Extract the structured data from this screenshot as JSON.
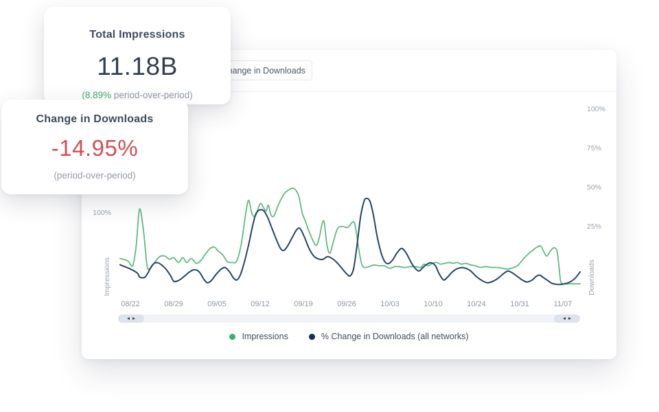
{
  "cards": {
    "impressions": {
      "title": "Total Impressions",
      "value": "11.18B",
      "delta_highlight": "(8.89%",
      "delta_muted": " period-over-period)"
    },
    "downloads": {
      "title": "Change in Downloads",
      "value": "-14.95%",
      "subtitle": "(period-over-period)"
    }
  },
  "toolbar": {
    "metric_dropdown_label": "% Change in Downloads"
  },
  "scrollbar": {
    "left_icon": "◂",
    "right_icon": "▸"
  },
  "chart_data": {
    "type": "line",
    "grid": false,
    "legend_position": "bottom-center",
    "x_axis": {
      "tick_labels": [
        "08/22",
        "08/29",
        "09/05",
        "09/12",
        "09/19",
        "09/26",
        "10/03",
        "10/10",
        "10/24",
        "10/31",
        "11/07"
      ]
    },
    "y_left": {
      "label": "Impressions",
      "unit": "%",
      "tick_labels": [
        "100%"
      ],
      "tick_values": [
        100
      ],
      "range": [
        0,
        235
      ]
    },
    "y_right": {
      "label": "Downloads",
      "unit": "%",
      "tick_labels": [
        "100%",
        "75%",
        "50%",
        "25%"
      ],
      "tick_values": [
        100,
        75,
        50,
        25
      ],
      "range": [
        -19,
        104
      ]
    },
    "series": [
      {
        "name": "Impressions",
        "axis": "left",
        "color": "#5fba81",
        "dot_color": "#2fb56d",
        "points": [
          [
            -0.24,
            45
          ],
          [
            -0.06,
            42
          ],
          [
            0.05,
            36
          ],
          [
            0.13,
            59
          ],
          [
            0.21,
            105
          ],
          [
            0.3,
            80
          ],
          [
            0.38,
            38
          ],
          [
            0.44,
            32
          ],
          [
            0.56,
            40
          ],
          [
            0.67,
            47
          ],
          [
            0.79,
            48
          ],
          [
            0.9,
            44
          ],
          [
            1.0,
            46
          ],
          [
            1.11,
            40
          ],
          [
            1.21,
            46
          ],
          [
            1.3,
            40
          ],
          [
            1.41,
            45
          ],
          [
            1.52,
            39
          ],
          [
            1.62,
            42
          ],
          [
            1.73,
            50
          ],
          [
            1.84,
            57
          ],
          [
            1.94,
            59
          ],
          [
            2.03,
            54
          ],
          [
            2.14,
            49
          ],
          [
            2.24,
            41
          ],
          [
            2.35,
            40
          ],
          [
            2.46,
            42
          ],
          [
            2.56,
            62
          ],
          [
            2.65,
            94
          ],
          [
            2.73,
            116
          ],
          [
            2.81,
            100
          ],
          [
            2.89,
            97
          ],
          [
            3.0,
            112
          ],
          [
            3.08,
            107
          ],
          [
            3.14,
            103
          ],
          [
            3.19,
            110
          ],
          [
            3.25,
            98
          ],
          [
            3.32,
            97
          ],
          [
            3.4,
            108
          ],
          [
            3.48,
            117
          ],
          [
            3.57,
            125
          ],
          [
            3.67,
            129
          ],
          [
            3.75,
            131
          ],
          [
            3.83,
            128
          ],
          [
            3.9,
            120
          ],
          [
            3.97,
            101
          ],
          [
            4.05,
            90
          ],
          [
            4.13,
            78
          ],
          [
            4.22,
            67
          ],
          [
            4.3,
            61
          ],
          [
            4.37,
            71
          ],
          [
            4.43,
            87
          ],
          [
            4.48,
            90
          ],
          [
            4.52,
            71
          ],
          [
            4.57,
            55
          ],
          [
            4.62,
            52
          ],
          [
            4.68,
            63
          ],
          [
            4.75,
            76
          ],
          [
            4.81,
            83
          ],
          [
            4.92,
            84
          ],
          [
            5.03,
            83
          ],
          [
            5.16,
            90
          ],
          [
            5.22,
            78
          ],
          [
            5.29,
            53
          ],
          [
            5.35,
            38
          ],
          [
            5.41,
            34
          ],
          [
            5.52,
            35
          ],
          [
            5.63,
            37
          ],
          [
            5.75,
            36
          ],
          [
            5.87,
            36
          ],
          [
            6.0,
            33
          ],
          [
            6.11,
            35
          ],
          [
            6.22,
            35
          ],
          [
            6.35,
            34
          ],
          [
            6.48,
            35
          ],
          [
            6.6,
            35
          ],
          [
            6.71,
            34
          ],
          [
            6.79,
            38
          ],
          [
            6.89,
            36
          ],
          [
            6.98,
            39
          ],
          [
            7.08,
            40
          ],
          [
            7.17,
            38
          ],
          [
            7.27,
            39
          ],
          [
            7.37,
            40
          ],
          [
            7.46,
            39
          ],
          [
            7.56,
            40
          ],
          [
            7.65,
            38
          ],
          [
            7.76,
            39
          ],
          [
            7.87,
            37
          ],
          [
            7.98,
            36
          ],
          [
            8.1,
            34
          ],
          [
            8.22,
            35
          ],
          [
            8.35,
            34
          ],
          [
            8.48,
            34
          ],
          [
            8.6,
            33
          ],
          [
            8.73,
            32
          ],
          [
            8.86,
            34
          ],
          [
            8.97,
            37
          ],
          [
            9.08,
            44
          ],
          [
            9.19,
            50
          ],
          [
            9.3,
            55
          ],
          [
            9.41,
            59
          ],
          [
            9.49,
            60
          ],
          [
            9.57,
            52
          ],
          [
            9.63,
            48
          ],
          [
            9.71,
            54
          ],
          [
            9.79,
            58
          ],
          [
            9.86,
            55
          ],
          [
            9.9,
            40
          ],
          [
            9.95,
            17
          ],
          [
            10.02,
            14
          ],
          [
            10.13,
            14
          ],
          [
            10.25,
            14
          ],
          [
            10.4,
            14
          ]
        ]
      },
      {
        "name": "% Change in Downloads (all networks)",
        "axis": "right",
        "color": "#25445f",
        "dot_color": "#15304a",
        "points": [
          [
            -0.24,
            0.5
          ],
          [
            0.0,
            -2.2
          ],
          [
            0.16,
            -4.8
          ],
          [
            0.22,
            -7.5
          ],
          [
            0.35,
            -7
          ],
          [
            0.51,
            0.4
          ],
          [
            0.63,
            1.8
          ],
          [
            0.79,
            -1.3
          ],
          [
            0.92,
            -6.1
          ],
          [
            1.0,
            -10
          ],
          [
            1.11,
            -9.6
          ],
          [
            1.24,
            -7
          ],
          [
            1.37,
            -4
          ],
          [
            1.48,
            -2.6
          ],
          [
            1.59,
            -4
          ],
          [
            1.7,
            -8.8
          ],
          [
            1.78,
            -11
          ],
          [
            1.87,
            -9.6
          ],
          [
            1.98,
            -5.7
          ],
          [
            2.1,
            -2.2
          ],
          [
            2.19,
            -1.3
          ],
          [
            2.29,
            -3.9
          ],
          [
            2.38,
            -7.9
          ],
          [
            2.46,
            -9.2
          ],
          [
            2.54,
            -6.1
          ],
          [
            2.63,
            1.8
          ],
          [
            2.73,
            13
          ],
          [
            2.83,
            26
          ],
          [
            2.9,
            33
          ],
          [
            2.98,
            35.5
          ],
          [
            3.08,
            35.1
          ],
          [
            3.17,
            31
          ],
          [
            3.27,
            24
          ],
          [
            3.37,
            17
          ],
          [
            3.46,
            11.4
          ],
          [
            3.54,
            9.6
          ],
          [
            3.63,
            12.3
          ],
          [
            3.75,
            18.4
          ],
          [
            3.84,
            22.8
          ],
          [
            3.92,
            23.7
          ],
          [
            4.02,
            18.4
          ],
          [
            4.13,
            11
          ],
          [
            4.24,
            6.1
          ],
          [
            4.33,
            4.4
          ],
          [
            4.44,
            3.9
          ],
          [
            4.56,
            5.7
          ],
          [
            4.67,
            4.4
          ],
          [
            4.78,
            1.8
          ],
          [
            4.89,
            -1.8
          ],
          [
            5.0,
            -5.3
          ],
          [
            5.08,
            -6.6
          ],
          [
            5.16,
            -2
          ],
          [
            5.24,
            13
          ],
          [
            5.32,
            31
          ],
          [
            5.4,
            41
          ],
          [
            5.46,
            43
          ],
          [
            5.54,
            41
          ],
          [
            5.62,
            32
          ],
          [
            5.71,
            18
          ],
          [
            5.81,
            7
          ],
          [
            5.89,
            2.2
          ],
          [
            5.97,
            1.3
          ],
          [
            6.06,
            3.5
          ],
          [
            6.17,
            8.3
          ],
          [
            6.27,
            11
          ],
          [
            6.37,
            8.3
          ],
          [
            6.48,
            2.6
          ],
          [
            6.57,
            -1.3
          ],
          [
            6.67,
            -3.5
          ],
          [
            6.76,
            -1.3
          ],
          [
            6.86,
            0.9
          ],
          [
            6.95,
            1.8
          ],
          [
            7.05,
            0
          ],
          [
            7.14,
            -5.3
          ],
          [
            7.24,
            -9.2
          ],
          [
            7.33,
            -7.5
          ],
          [
            7.43,
            -4.4
          ],
          [
            7.54,
            -2.2
          ],
          [
            7.65,
            -1.3
          ],
          [
            7.76,
            -1.8
          ],
          [
            7.87,
            -3.5
          ],
          [
            8.0,
            -7
          ],
          [
            8.13,
            -9.6
          ],
          [
            8.25,
            -11
          ],
          [
            8.38,
            -10.1
          ],
          [
            8.51,
            -7.9
          ],
          [
            8.62,
            -5.3
          ],
          [
            8.73,
            -3.5
          ],
          [
            8.84,
            -4.8
          ],
          [
            8.95,
            -7
          ],
          [
            9.06,
            -9.2
          ],
          [
            9.17,
            -10.5
          ],
          [
            9.29,
            -9.2
          ],
          [
            9.38,
            -7
          ],
          [
            9.46,
            -6.1
          ],
          [
            9.56,
            -7.9
          ],
          [
            9.65,
            -9.6
          ],
          [
            9.75,
            -11.4
          ],
          [
            9.86,
            -12
          ],
          [
            9.97,
            -12
          ],
          [
            10.08,
            -11.4
          ],
          [
            10.19,
            -10.1
          ],
          [
            10.29,
            -7.9
          ],
          [
            10.4,
            -4
          ]
        ]
      }
    ]
  }
}
